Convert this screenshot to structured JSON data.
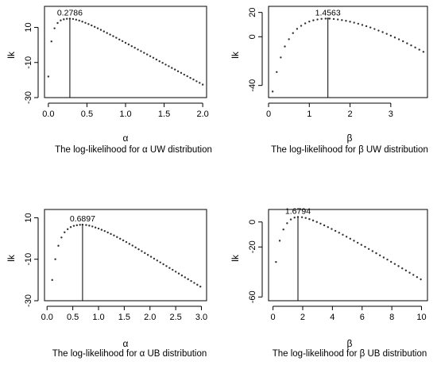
{
  "chart_data": [
    {
      "type": "scatter",
      "title": "The log-likelihood for α UW distribution",
      "xlabel": "α",
      "ylabel": "lk",
      "xticks": [
        0.0,
        0.5,
        1.0,
        1.5,
        2.0
      ],
      "xtick_labels": [
        "0.0",
        "0.5",
        "1.0",
        "1.5",
        "2.0"
      ],
      "yticks": [
        10,
        -10,
        -30
      ],
      "ytick_labels": [
        "10",
        "-10",
        "-30"
      ],
      "xlim": [
        -0.05,
        2.05
      ],
      "ylim": [
        -30,
        22
      ],
      "x": [
        0.0,
        0.04,
        0.08,
        0.12,
        0.16,
        0.2,
        0.24,
        0.2786,
        0.32,
        0.36,
        0.4,
        0.44,
        0.48,
        0.52,
        0.56,
        0.6,
        0.64,
        0.68,
        0.72,
        0.76,
        0.8,
        0.84,
        0.88,
        0.92,
        0.96,
        1.0,
        1.04,
        1.08,
        1.12,
        1.16,
        1.2,
        1.24,
        1.28,
        1.32,
        1.36,
        1.4,
        1.44,
        1.48,
        1.52,
        1.56,
        1.6,
        1.64,
        1.68,
        1.72,
        1.76,
        1.8,
        1.84,
        1.88,
        1.92,
        1.96,
        2.0
      ],
      "y": [
        -18,
        2,
        9.5,
        12.5,
        14,
        14.6,
        14.9,
        15,
        14.8,
        14.4,
        13.9,
        13.3,
        12.6,
        11.9,
        11.1,
        10.3,
        9.5,
        8.6,
        7.7,
        6.8,
        5.9,
        5,
        4.1,
        3.1,
        2.2,
        1.2,
        0.3,
        -0.7,
        -1.6,
        -2.6,
        -3.5,
        -4.5,
        -5.4,
        -6.4,
        -7.3,
        -8.3,
        -9.3,
        -10.2,
        -11.2,
        -12.1,
        -13.1,
        -14,
        -15,
        -15.9,
        -16.9,
        -17.8,
        -18.8,
        -19.7,
        -20.7,
        -21.6,
        -22.6
      ],
      "peak": {
        "x": 0.2786,
        "y": 15,
        "label": "0.2786"
      }
    },
    {
      "type": "scatter",
      "title": "The log-likelihood for β  UW distribution",
      "xlabel": "β",
      "ylabel": "lk",
      "xticks": [
        0,
        1,
        2,
        3
      ],
      "xtick_labels": [
        "0",
        "1",
        "2",
        "3"
      ],
      "yticks": [
        20,
        0,
        -40
      ],
      "ytick_labels": [
        "20",
        "0",
        "-40"
      ],
      "xlim": [
        0,
        3.9
      ],
      "ylim": [
        -50,
        25
      ],
      "x": [
        0.1,
        0.2,
        0.3,
        0.4,
        0.5,
        0.6,
        0.7,
        0.8,
        0.9,
        1.0,
        1.1,
        1.2,
        1.3,
        1.4,
        1.4563,
        1.5,
        1.6,
        1.7,
        1.8,
        1.9,
        2.0,
        2.1,
        2.2,
        2.3,
        2.4,
        2.5,
        2.6,
        2.7,
        2.8,
        2.9,
        3.0,
        3.1,
        3.2,
        3.3,
        3.4,
        3.5,
        3.6,
        3.7,
        3.8
      ],
      "y": [
        -45,
        -29,
        -17,
        -8,
        -2,
        3,
        6.5,
        9,
        11,
        12.5,
        13.5,
        14.2,
        14.7,
        14.9,
        15,
        14.9,
        14.6,
        14.2,
        13.7,
        13.1,
        12.4,
        11.6,
        10.7,
        9.7,
        8.7,
        7.6,
        6.4,
        5.1,
        3.8,
        2.4,
        0.9,
        -0.6,
        -2.1,
        -3.7,
        -5.4,
        -7.1,
        -8.8,
        -10.6,
        -12.4
      ],
      "peak": {
        "x": 1.4563,
        "y": 15,
        "label": "1.4563"
      }
    },
    {
      "type": "scatter",
      "title": "The log-likelihood for α UB distribution",
      "xlabel": "α",
      "ylabel": "lk",
      "xticks": [
        0.0,
        0.5,
        1.0,
        1.5,
        2.0,
        2.5,
        3.0
      ],
      "xtick_labels": [
        "0.0",
        "0.5",
        "1.0",
        "1.5",
        "2.0",
        "2.5",
        "3.0"
      ],
      "yticks": [
        10,
        -10,
        -30
      ],
      "ytick_labels": [
        "10",
        "-10",
        "-30"
      ],
      "xlim": [
        -0.05,
        3.1
      ],
      "ylim": [
        -30,
        14
      ],
      "x": [
        0.1,
        0.16,
        0.22,
        0.28,
        0.34,
        0.4,
        0.46,
        0.52,
        0.58,
        0.64,
        0.6897,
        0.76,
        0.82,
        0.88,
        0.94,
        1.0,
        1.06,
        1.12,
        1.18,
        1.24,
        1.3,
        1.36,
        1.42,
        1.48,
        1.54,
        1.6,
        1.66,
        1.72,
        1.78,
        1.84,
        1.9,
        1.96,
        2.02,
        2.08,
        2.14,
        2.2,
        2.26,
        2.32,
        2.38,
        2.44,
        2.5,
        2.56,
        2.62,
        2.68,
        2.74,
        2.8,
        2.86,
        2.92,
        2.98
      ],
      "y": [
        -20,
        -10,
        -3.5,
        0.5,
        3,
        4.5,
        5.5,
        6.1,
        6.4,
        6.6,
        6.7,
        6.5,
        6.2,
        5.8,
        5.3,
        4.8,
        4.2,
        3.6,
        2.9,
        2.2,
        1.5,
        0.7,
        -0.1,
        -0.9,
        -1.7,
        -2.6,
        -3.4,
        -4.3,
        -5.2,
        -6.1,
        -7,
        -7.9,
        -8.8,
        -9.7,
        -10.6,
        -11.5,
        -12.4,
        -13.3,
        -14.2,
        -15.1,
        -16,
        -16.9,
        -17.8,
        -18.7,
        -19.6,
        -20.5,
        -21.4,
        -22.3,
        -23.2
      ],
      "peak": {
        "x": 0.6897,
        "y": 6.7,
        "label": "0.6897"
      }
    },
    {
      "type": "scatter",
      "title": "The log-likelihood for β UB distribution",
      "xlabel": "β",
      "ylabel": "lk",
      "xticks": [
        0,
        2,
        4,
        6,
        8,
        10
      ],
      "xtick_labels": [
        "0",
        "2",
        "4",
        "6",
        "8",
        "10"
      ],
      "yticks": [
        0,
        -20,
        -60
      ],
      "ytick_labels": [
        "0",
        "-20",
        "-60"
      ],
      "xlim": [
        -0.3,
        10.4
      ],
      "ylim": [
        -63,
        10
      ],
      "x": [
        0.2,
        0.45,
        0.7,
        0.95,
        1.2,
        1.45,
        1.6794,
        1.95,
        2.2,
        2.45,
        2.7,
        2.95,
        3.2,
        3.45,
        3.7,
        3.95,
        4.2,
        4.45,
        4.7,
        4.95,
        5.2,
        5.45,
        5.7,
        5.95,
        6.2,
        6.45,
        6.7,
        6.95,
        7.2,
        7.45,
        7.7,
        7.95,
        8.2,
        8.45,
        8.7,
        8.95,
        9.2,
        9.45,
        9.7,
        9.95
      ],
      "y": [
        -32,
        -15,
        -6,
        -1,
        2,
        3.5,
        4,
        3.8,
        3.2,
        2.3,
        1.2,
        0,
        -1.3,
        -2.7,
        -4.1,
        -5.6,
        -7.1,
        -8.6,
        -10.2,
        -11.8,
        -13.4,
        -15,
        -16.6,
        -18.3,
        -19.9,
        -21.6,
        -23.3,
        -25,
        -26.7,
        -28.4,
        -30.1,
        -31.9,
        -33.6,
        -35.3,
        -37.1,
        -38.8,
        -40.6,
        -42.3,
        -44.1,
        -45.9
      ],
      "peak": {
        "x": 1.6794,
        "y": 4,
        "label": "1.6794"
      }
    }
  ]
}
